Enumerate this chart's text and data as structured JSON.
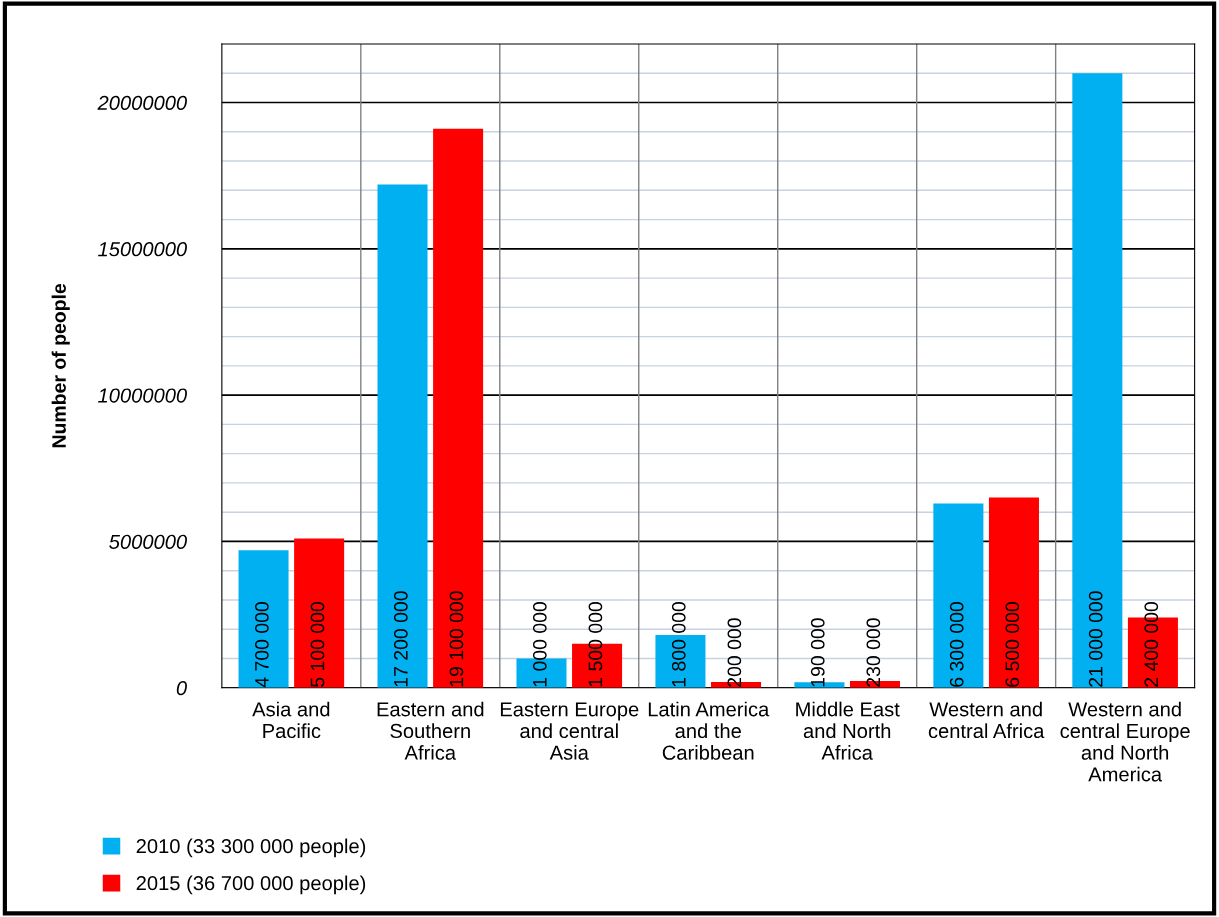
{
  "chart_data": {
    "type": "bar",
    "ylabel": "Number of people",
    "categories": [
      "Asia and Pacific",
      "Eastern and Southern Africa",
      "Eastern Europe and central Asia",
      "Latin America and the Caribbean",
      "Middle East and North Africa",
      "Western and central Africa",
      "Western and central Europe and North America"
    ],
    "series": [
      {
        "name": "2010 (33 300 000 people)",
        "color": "#00b0f0",
        "values": [
          4700000,
          17200000,
          1000000,
          1800000,
          190000,
          6300000,
          21000000
        ],
        "value_labels": [
          "4 700 000",
          "17 200 000",
          "1 000 000",
          "1 800 000",
          "190 000",
          "6 300 000",
          "21 000 000"
        ]
      },
      {
        "name": "2015 (36 700 000 people)",
        "color": "#ff0000",
        "values": [
          5100000,
          19100000,
          1500000,
          200000,
          230000,
          6500000,
          2400000
        ],
        "value_labels": [
          "5 100 000",
          "19 100 000",
          "1 500 000",
          "200 000",
          "230 000",
          "6 500 000",
          "2 400 000"
        ]
      }
    ],
    "ylim": [
      0,
      22000000
    ],
    "yticks": [
      0,
      {
        "value": 1000000,
        "label": null
      },
      {
        "value": 2000000,
        "label": null
      },
      {
        "value": 3000000,
        "label": null
      },
      {
        "value": 4000000,
        "label": null
      },
      5000000,
      {
        "value": 6000000,
        "label": null
      },
      {
        "value": 7000000,
        "label": null
      },
      {
        "value": 8000000,
        "label": null
      },
      {
        "value": 9000000,
        "label": null
      },
      10000000,
      {
        "value": 11000000,
        "label": null
      },
      {
        "value": 12000000,
        "label": null
      },
      {
        "value": 13000000,
        "label": null
      },
      {
        "value": 14000000,
        "label": null
      },
      15000000,
      {
        "value": 16000000,
        "label": null
      },
      {
        "value": 17000000,
        "label": null
      },
      {
        "value": 18000000,
        "label": null
      },
      {
        "value": 19000000,
        "label": null
      },
      20000000,
      {
        "value": 21000000,
        "label": null
      }
    ],
    "grid": true,
    "legend": "bottom left"
  }
}
